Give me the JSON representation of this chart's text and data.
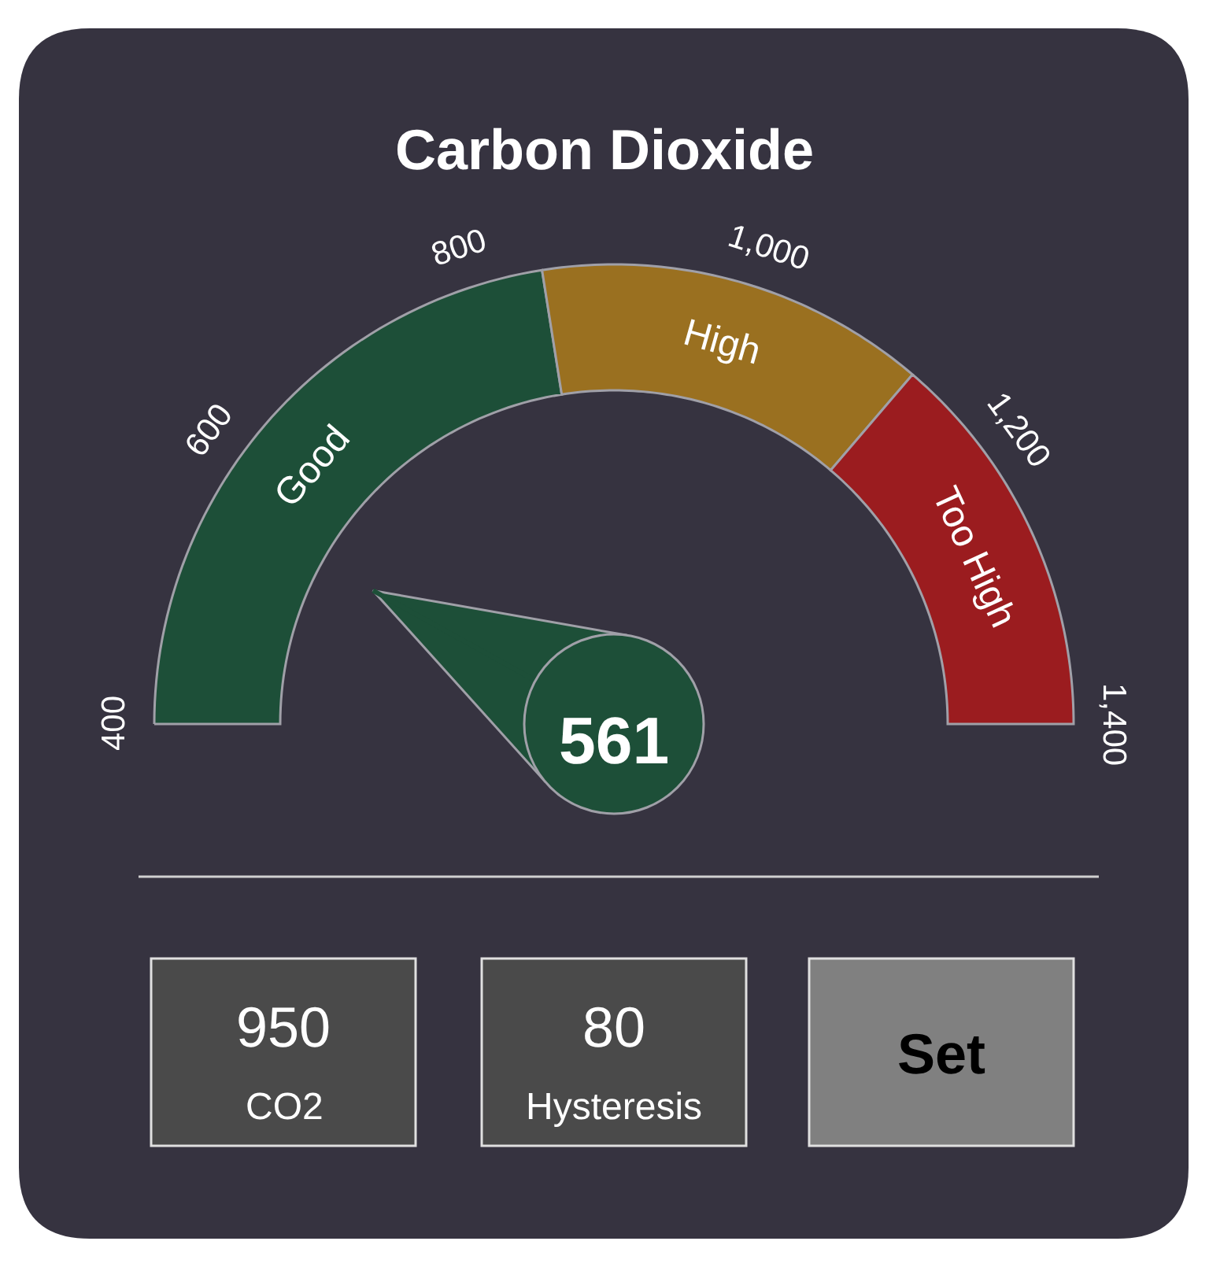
{
  "chart_data": {
    "type": "donut",
    "title": "Carbon Dioxide",
    "categories": [
      "Good",
      "High",
      "Too High"
    ],
    "values": [
      45,
      27.5,
      27.5
    ],
    "colors": [
      "#1d4f38",
      "#9a7020",
      "#9b1c1f"
    ],
    "needle": "Good",
    "annotations": [
      "400",
      "600",
      "800",
      "1,000",
      "1,200",
      "1,400",
      "561",
      "950",
      "CO2",
      "80",
      "Hysteresis",
      "Set"
    ]
  }
}
